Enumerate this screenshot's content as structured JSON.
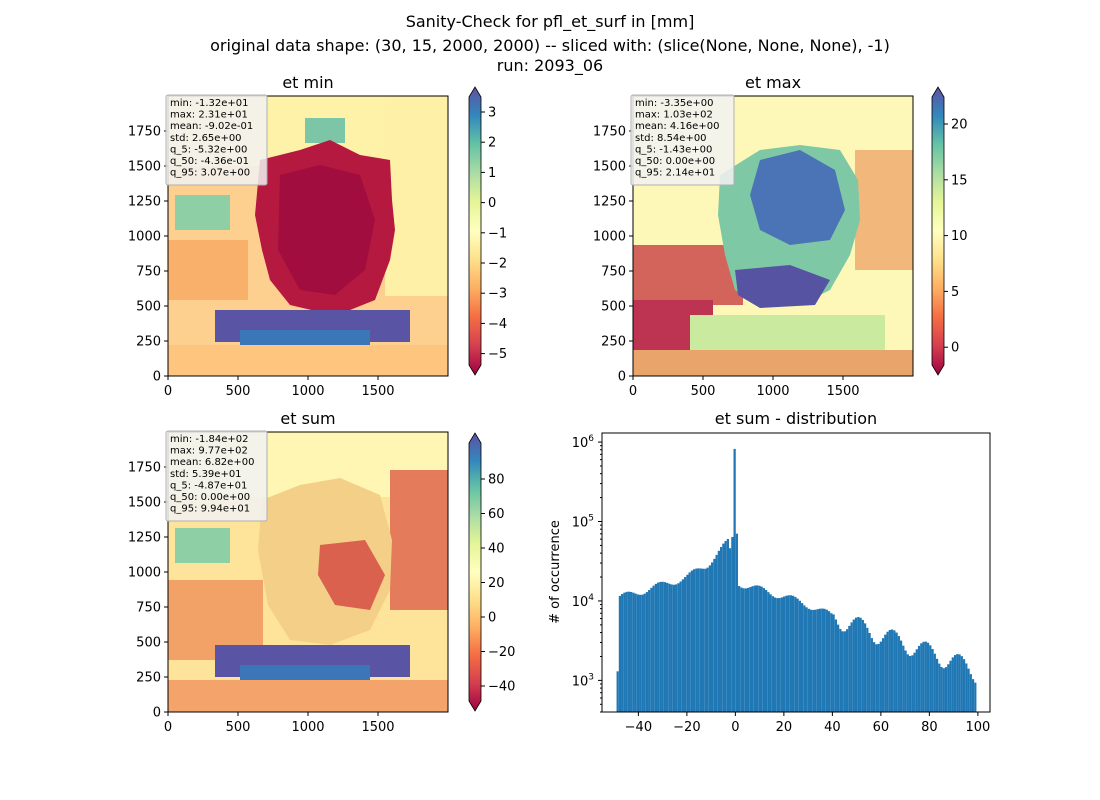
{
  "suptitle": {
    "line1": "Sanity-Check for pfl_et_surf in [mm]",
    "line2": "original data shape: (30, 15, 2000, 2000) -- sliced with: (slice(None, None, None), -1)",
    "line3": "run: 2093_06"
  },
  "colors": {
    "hist_bar": "#1f77b4",
    "spectral": [
      "#9e0142",
      "#d53e4f",
      "#f46d43",
      "#fdae61",
      "#fee08b",
      "#ffffbf",
      "#e6f598",
      "#abdda4",
      "#66c2a5",
      "#3288bd",
      "#5e4fa2"
    ]
  },
  "panels": {
    "et_min": {
      "title": "et min",
      "xticks": [
        "0",
        "500",
        "1000",
        "1500"
      ],
      "yticks": [
        "0",
        "250",
        "500",
        "750",
        "1000",
        "1250",
        "1500",
        "1750"
      ],
      "colorbar_ticks": [
        "3",
        "2",
        "1",
        "0",
        "−1",
        "−2",
        "−3",
        "−4",
        "−5"
      ],
      "stats": [
        "min: -1.32e+01",
        "max: 2.31e+01",
        "mean: -9.02e-01",
        "std: 2.65e+00",
        "q_5: -5.32e+00",
        "q_50: -4.36e-01",
        "q_95: 3.07e+00"
      ]
    },
    "et_max": {
      "title": "et max",
      "xticks": [
        "0",
        "500",
        "1000",
        "1500"
      ],
      "yticks": [
        "0",
        "250",
        "500",
        "750",
        "1000",
        "1250",
        "1500",
        "1750"
      ],
      "colorbar_ticks": [
        "20",
        "15",
        "10",
        "5",
        "0"
      ],
      "stats": [
        "min: -3.35e+00",
        "max: 1.03e+02",
        "mean: 4.16e+00",
        "std: 8.54e+00",
        "q_5: -1.43e+00",
        "q_50: 0.00e+00",
        "q_95: 2.14e+01"
      ]
    },
    "et_sum": {
      "title": "et sum",
      "xticks": [
        "0",
        "500",
        "1000",
        "1500"
      ],
      "yticks": [
        "0",
        "250",
        "500",
        "750",
        "1000",
        "1250",
        "1500",
        "1750"
      ],
      "colorbar_ticks": [
        "80",
        "60",
        "40",
        "20",
        "0",
        "−20",
        "−40"
      ],
      "stats": [
        "min: -1.84e+02",
        "max: 9.77e+02",
        "mean: 6.82e+00",
        "std: 5.39e+01",
        "q_5: -4.87e+01",
        "q_50: 0.00e+00",
        "q_95: 9.94e+01"
      ]
    }
  },
  "chart_data": [
    {
      "type": "heatmap",
      "title": "et min",
      "xlim": [
        0,
        2000
      ],
      "ylim": [
        0,
        2000
      ],
      "colorbar_range": [
        -5.3,
        3.1
      ],
      "colormap": "Spectral",
      "stats": {
        "min": -13.2,
        "max": 23.1,
        "mean": -0.902,
        "std": 2.65,
        "q_5": -5.32,
        "q_50": -0.436,
        "q_95": 3.07
      }
    },
    {
      "type": "heatmap",
      "title": "et max",
      "xlim": [
        0,
        2000
      ],
      "ylim": [
        0,
        2000
      ],
      "colorbar_range": [
        -1.4,
        21.4
      ],
      "colormap": "Spectral",
      "stats": {
        "min": -3.35,
        "max": 103,
        "mean": 4.16,
        "std": 8.54,
        "q_5": -1.43,
        "q_50": 0.0,
        "q_95": 21.4
      }
    },
    {
      "type": "heatmap",
      "title": "et sum",
      "xlim": [
        0,
        2000
      ],
      "ylim": [
        0,
        2000
      ],
      "colorbar_range": [
        -48.7,
        99.4
      ],
      "colormap": "Spectral",
      "stats": {
        "min": -184,
        "max": 977,
        "mean": 6.82,
        "std": 53.9,
        "q_5": -48.7,
        "q_50": 0.0,
        "q_95": 99.4
      }
    },
    {
      "type": "bar",
      "title": "et sum - distribution",
      "xlabel": "",
      "ylabel": "# of occurrence",
      "xlim": [
        -55,
        105
      ],
      "ylim": [
        400,
        1300000
      ],
      "yscale": "log",
      "xticks": [
        "−40",
        "−20",
        "0",
        "20",
        "40",
        "60",
        "80",
        "100"
      ],
      "yticks": [
        "10^3",
        "10^4",
        "10^5",
        "10^6"
      ],
      "bin_range": [
        -49,
        99.4
      ],
      "counts_profile": [
        {
          "x": -48,
          "y": 11000
        },
        {
          "x": -40,
          "y": 13000
        },
        {
          "x": -30,
          "y": 16000
        },
        {
          "x": -20,
          "y": 20000
        },
        {
          "x": -12,
          "y": 28000
        },
        {
          "x": -5,
          "y": 48000
        },
        {
          "x": -3,
          "y": 55000
        },
        {
          "x": -1.5,
          "y": 35000
        },
        {
          "x": 0,
          "y": 820000
        },
        {
          "x": 1,
          "y": 17000
        },
        {
          "x": 10,
          "y": 14000
        },
        {
          "x": 20,
          "y": 11500
        },
        {
          "x": 30,
          "y": 9000
        },
        {
          "x": 40,
          "y": 6500
        },
        {
          "x": 50,
          "y": 5000
        },
        {
          "x": 60,
          "y": 3800
        },
        {
          "x": 70,
          "y": 3000
        },
        {
          "x": 80,
          "y": 2300
        },
        {
          "x": 90,
          "y": 1800
        },
        {
          "x": 99,
          "y": 1300
        }
      ]
    }
  ]
}
